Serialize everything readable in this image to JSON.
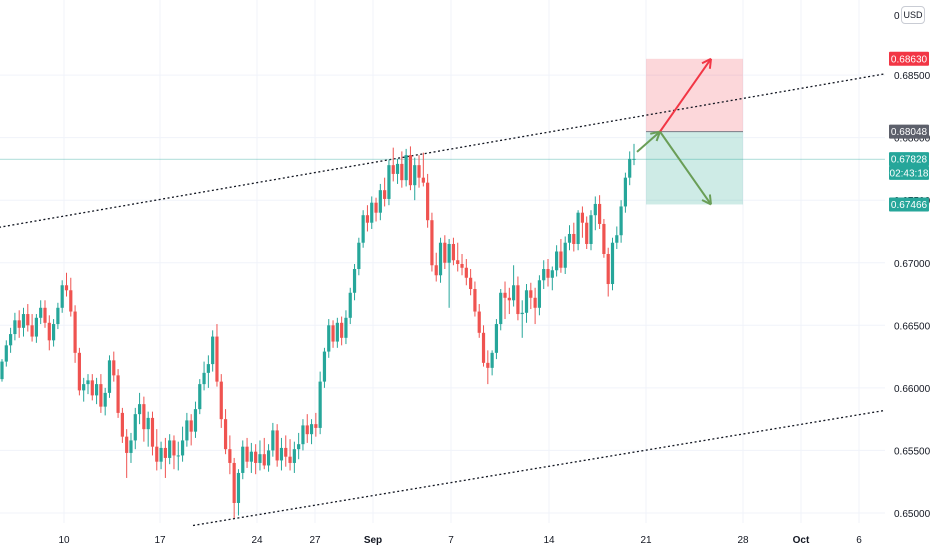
{
  "chart_data": {
    "type": "candlestick",
    "currency": "USD",
    "y_top_label": "0",
    "price_ticks": [
      "0.68500",
      "0.68000",
      "0.67500",
      "0.67000",
      "0.66500",
      "0.66000",
      "0.65500",
      "0.65000"
    ],
    "date_ticks": [
      "10",
      "17",
      "24",
      "27",
      "Sep",
      "7",
      "14",
      "21",
      "28",
      "Oct",
      "6"
    ],
    "ylim": [
      0.6492,
      0.691
    ],
    "grid": true,
    "price_tags": [
      {
        "label": "0.68630",
        "value": 0.6863,
        "color": "#f23645"
      },
      {
        "label": "0.68048",
        "value": 0.68048,
        "color": "#5d606b"
      },
      {
        "label": "0.67828",
        "value": 0.67828,
        "color": "#26a69a"
      },
      {
        "label": "02:43:18",
        "value": 0.67718,
        "color": "#26a69a"
      },
      {
        "label": "0.67466",
        "value": 0.67466,
        "color": "#26a69a"
      }
    ],
    "position": {
      "entry": 0.68048,
      "target": 0.6863,
      "stop": 0.67466,
      "start": "Sep 21",
      "end": "Sep 28"
    },
    "channel_upper": [
      {
        "x": "Jul 28",
        "y": 0.6724
      },
      {
        "x": "Oct 12",
        "y": 0.6851
      }
    ],
    "channel_lower": [
      {
        "x": "Aug 19",
        "y": 0.649
      },
      {
        "x": "Oct 12",
        "y": 0.6582
      }
    ],
    "candles": [
      [
        0.6607,
        0.6623,
        0.6605,
        0.6621
      ],
      [
        0.6621,
        0.6638,
        0.6617,
        0.6634
      ],
      [
        0.6634,
        0.6648,
        0.6628,
        0.6643
      ],
      [
        0.6643,
        0.666,
        0.6638,
        0.6654
      ],
      [
        0.6654,
        0.6662,
        0.664,
        0.6648
      ],
      [
        0.6648,
        0.6664,
        0.6641,
        0.6659
      ],
      [
        0.6659,
        0.6667,
        0.6645,
        0.665
      ],
      [
        0.665,
        0.6659,
        0.6637,
        0.6641
      ],
      [
        0.6641,
        0.6659,
        0.6636,
        0.6656
      ],
      [
        0.6656,
        0.667,
        0.6651,
        0.6664
      ],
      [
        0.6664,
        0.667,
        0.6648,
        0.6652
      ],
      [
        0.6652,
        0.6658,
        0.663,
        0.6638
      ],
      [
        0.6638,
        0.6655,
        0.6633,
        0.6651
      ],
      [
        0.6651,
        0.6668,
        0.6647,
        0.6664
      ],
      [
        0.6664,
        0.6686,
        0.666,
        0.6682
      ],
      [
        0.6682,
        0.6692,
        0.6673,
        0.6678
      ],
      [
        0.6678,
        0.6688,
        0.6657,
        0.6661
      ],
      [
        0.6661,
        0.6666,
        0.662,
        0.6628
      ],
      [
        0.6628,
        0.6632,
        0.6594,
        0.6598
      ],
      [
        0.6598,
        0.6608,
        0.6589,
        0.6603
      ],
      [
        0.6603,
        0.6611,
        0.6595,
        0.6606
      ],
      [
        0.6606,
        0.6611,
        0.659,
        0.6594
      ],
      [
        0.6594,
        0.6608,
        0.6587,
        0.6603
      ],
      [
        0.6603,
        0.6611,
        0.658,
        0.6585
      ],
      [
        0.6585,
        0.66,
        0.6578,
        0.6596
      ],
      [
        0.6596,
        0.6626,
        0.6592,
        0.6622
      ],
      [
        0.6622,
        0.6629,
        0.6605,
        0.661
      ],
      [
        0.661,
        0.6615,
        0.6576,
        0.658
      ],
      [
        0.658,
        0.6584,
        0.6556,
        0.6561
      ],
      [
        0.6561,
        0.6567,
        0.6528,
        0.6548
      ],
      [
        0.6548,
        0.6564,
        0.654,
        0.6558
      ],
      [
        0.6558,
        0.6584,
        0.6551,
        0.6579
      ],
      [
        0.6579,
        0.6596,
        0.6571,
        0.6587
      ],
      [
        0.6587,
        0.6593,
        0.6557,
        0.6567
      ],
      [
        0.6567,
        0.6581,
        0.6553,
        0.6576
      ],
      [
        0.6576,
        0.6581,
        0.6546,
        0.6553
      ],
      [
        0.6553,
        0.6567,
        0.6534,
        0.6541
      ],
      [
        0.6541,
        0.6557,
        0.6535,
        0.6552
      ],
      [
        0.6552,
        0.656,
        0.6528,
        0.6544
      ],
      [
        0.6544,
        0.6563,
        0.6539,
        0.6558
      ],
      [
        0.6558,
        0.6562,
        0.6535,
        0.6546
      ],
      [
        0.6546,
        0.6557,
        0.6534,
        0.6546
      ],
      [
        0.6546,
        0.6569,
        0.6541,
        0.6558
      ],
      [
        0.6558,
        0.658,
        0.6553,
        0.6574
      ],
      [
        0.6574,
        0.6579,
        0.6554,
        0.6565
      ],
      [
        0.6565,
        0.6589,
        0.656,
        0.6583
      ],
      [
        0.6583,
        0.6607,
        0.6579,
        0.6603
      ],
      [
        0.6603,
        0.6621,
        0.6598,
        0.6612
      ],
      [
        0.6612,
        0.6626,
        0.66,
        0.6619
      ],
      [
        0.6619,
        0.6646,
        0.6613,
        0.6641
      ],
      [
        0.6641,
        0.6651,
        0.6601,
        0.6605
      ],
      [
        0.6605,
        0.6611,
        0.6568,
        0.6575
      ],
      [
        0.6575,
        0.6583,
        0.6547,
        0.6551
      ],
      [
        0.6551,
        0.6562,
        0.6531,
        0.654
      ],
      [
        0.654,
        0.6544,
        0.6496,
        0.6508
      ],
      [
        0.6508,
        0.6535,
        0.6498,
        0.6532
      ],
      [
        0.6532,
        0.6558,
        0.6527,
        0.6553
      ],
      [
        0.6553,
        0.656,
        0.6536,
        0.6541
      ],
      [
        0.6541,
        0.6556,
        0.6532,
        0.6549
      ],
      [
        0.6549,
        0.6555,
        0.6531,
        0.654
      ],
      [
        0.654,
        0.6558,
        0.6534,
        0.6547
      ],
      [
        0.6547,
        0.656,
        0.6535,
        0.6538
      ],
      [
        0.6538,
        0.6555,
        0.6533,
        0.655
      ],
      [
        0.655,
        0.6572,
        0.6545,
        0.6566
      ],
      [
        0.6566,
        0.6571,
        0.6537,
        0.6542
      ],
      [
        0.6542,
        0.656,
        0.6534,
        0.6552
      ],
      [
        0.6552,
        0.6562,
        0.6537,
        0.6545
      ],
      [
        0.6545,
        0.6559,
        0.6534,
        0.654
      ],
      [
        0.654,
        0.6557,
        0.6532,
        0.6551
      ],
      [
        0.6551,
        0.6564,
        0.6543,
        0.6555
      ],
      [
        0.6555,
        0.6575,
        0.655,
        0.657
      ],
      [
        0.657,
        0.6579,
        0.6556,
        0.6563
      ],
      [
        0.6563,
        0.6575,
        0.6555,
        0.6571
      ],
      [
        0.6571,
        0.658,
        0.6561,
        0.6568
      ],
      [
        0.6568,
        0.6613,
        0.6563,
        0.6605
      ],
      [
        0.6605,
        0.6632,
        0.66,
        0.6629
      ],
      [
        0.6629,
        0.6655,
        0.6624,
        0.665
      ],
      [
        0.665,
        0.6654,
        0.6632,
        0.6637
      ],
      [
        0.6637,
        0.6656,
        0.6632,
        0.6652
      ],
      [
        0.6652,
        0.6657,
        0.6634,
        0.664
      ],
      [
        0.664,
        0.6662,
        0.6635,
        0.6656
      ],
      [
        0.6656,
        0.668,
        0.6651,
        0.6676
      ],
      [
        0.6676,
        0.6699,
        0.667,
        0.6695
      ],
      [
        0.6695,
        0.672,
        0.669,
        0.6716
      ],
      [
        0.6716,
        0.6742,
        0.6712,
        0.6738
      ],
      [
        0.6738,
        0.6746,
        0.6725,
        0.6732
      ],
      [
        0.6732,
        0.6753,
        0.6727,
        0.6748
      ],
      [
        0.6748,
        0.6752,
        0.6733,
        0.674
      ],
      [
        0.674,
        0.6763,
        0.6734,
        0.6758
      ],
      [
        0.6758,
        0.6768,
        0.6745,
        0.6751
      ],
      [
        0.6751,
        0.6782,
        0.6746,
        0.6778
      ],
      [
        0.6778,
        0.6792,
        0.6765,
        0.6771
      ],
      [
        0.6771,
        0.6783,
        0.6763,
        0.6779
      ],
      [
        0.6779,
        0.6789,
        0.676,
        0.6766
      ],
      [
        0.6766,
        0.6791,
        0.6761,
        0.6786
      ],
      [
        0.6786,
        0.6793,
        0.6758,
        0.6762
      ],
      [
        0.6762,
        0.6784,
        0.675,
        0.6778
      ],
      [
        0.6778,
        0.6786,
        0.676,
        0.6768
      ],
      [
        0.6768,
        0.6788,
        0.6761,
        0.6764
      ],
      [
        0.6764,
        0.6771,
        0.6728,
        0.6734
      ],
      [
        0.6734,
        0.674,
        0.6693,
        0.6698
      ],
      [
        0.6698,
        0.6708,
        0.6685,
        0.669
      ],
      [
        0.669,
        0.672,
        0.6684,
        0.6716
      ],
      [
        0.6716,
        0.6722,
        0.6695,
        0.67
      ],
      [
        0.67,
        0.6719,
        0.6664,
        0.6715
      ],
      [
        0.6715,
        0.672,
        0.6698,
        0.6702
      ],
      [
        0.6702,
        0.6716,
        0.6693,
        0.6699
      ],
      [
        0.6699,
        0.6707,
        0.669,
        0.6696
      ],
      [
        0.6696,
        0.6703,
        0.6682,
        0.6688
      ],
      [
        0.6688,
        0.6695,
        0.6674,
        0.6679
      ],
      [
        0.6679,
        0.6685,
        0.6657,
        0.6661
      ],
      [
        0.6661,
        0.6667,
        0.664,
        0.6644
      ],
      [
        0.6644,
        0.665,
        0.6617,
        0.662
      ],
      [
        0.662,
        0.663,
        0.6603,
        0.6616
      ],
      [
        0.6616,
        0.663,
        0.661,
        0.6628
      ],
      [
        0.6628,
        0.6655,
        0.6623,
        0.6651
      ],
      [
        0.6651,
        0.6679,
        0.6646,
        0.6676
      ],
      [
        0.6676,
        0.6685,
        0.6655,
        0.6672
      ],
      [
        0.6672,
        0.668,
        0.6659,
        0.667
      ],
      [
        0.667,
        0.6698,
        0.6665,
        0.6682
      ],
      [
        0.6682,
        0.6689,
        0.6654,
        0.6659
      ],
      [
        0.6659,
        0.667,
        0.664,
        0.666
      ],
      [
        0.666,
        0.6683,
        0.6652,
        0.6678
      ],
      [
        0.6678,
        0.6684,
        0.6663,
        0.6672
      ],
      [
        0.6672,
        0.668,
        0.6651,
        0.6664
      ],
      [
        0.6664,
        0.669,
        0.6658,
        0.6686
      ],
      [
        0.6686,
        0.6702,
        0.6679,
        0.6695
      ],
      [
        0.6695,
        0.6703,
        0.6681,
        0.6688
      ],
      [
        0.6688,
        0.6697,
        0.6678,
        0.6694
      ],
      [
        0.6694,
        0.6714,
        0.6689,
        0.6709
      ],
      [
        0.6709,
        0.6719,
        0.6692,
        0.6696
      ],
      [
        0.6696,
        0.6721,
        0.6691,
        0.6716
      ],
      [
        0.6716,
        0.673,
        0.671,
        0.6723
      ],
      [
        0.6723,
        0.6732,
        0.6709,
        0.6715
      ],
      [
        0.6715,
        0.6742,
        0.671,
        0.674
      ],
      [
        0.674,
        0.6745,
        0.672,
        0.6732
      ],
      [
        0.6732,
        0.6737,
        0.6711,
        0.6715
      ],
      [
        0.6715,
        0.6742,
        0.671,
        0.6738
      ],
      [
        0.6738,
        0.6753,
        0.6726,
        0.6747
      ],
      [
        0.6747,
        0.6754,
        0.6727,
        0.6731
      ],
      [
        0.6731,
        0.6735,
        0.6704,
        0.6707
      ],
      [
        0.6707,
        0.6712,
        0.6673,
        0.6683
      ],
      [
        0.6683,
        0.672,
        0.6678,
        0.6716
      ],
      [
        0.6716,
        0.6729,
        0.6711,
        0.6722
      ],
      [
        0.6722,
        0.675,
        0.6716,
        0.6745
      ],
      [
        0.6745,
        0.6772,
        0.674,
        0.6768
      ],
      [
        0.6768,
        0.6789,
        0.6762,
        0.6783
      ],
      [
        0.6783,
        0.6795,
        0.6778,
        0.6783
      ]
    ]
  }
}
